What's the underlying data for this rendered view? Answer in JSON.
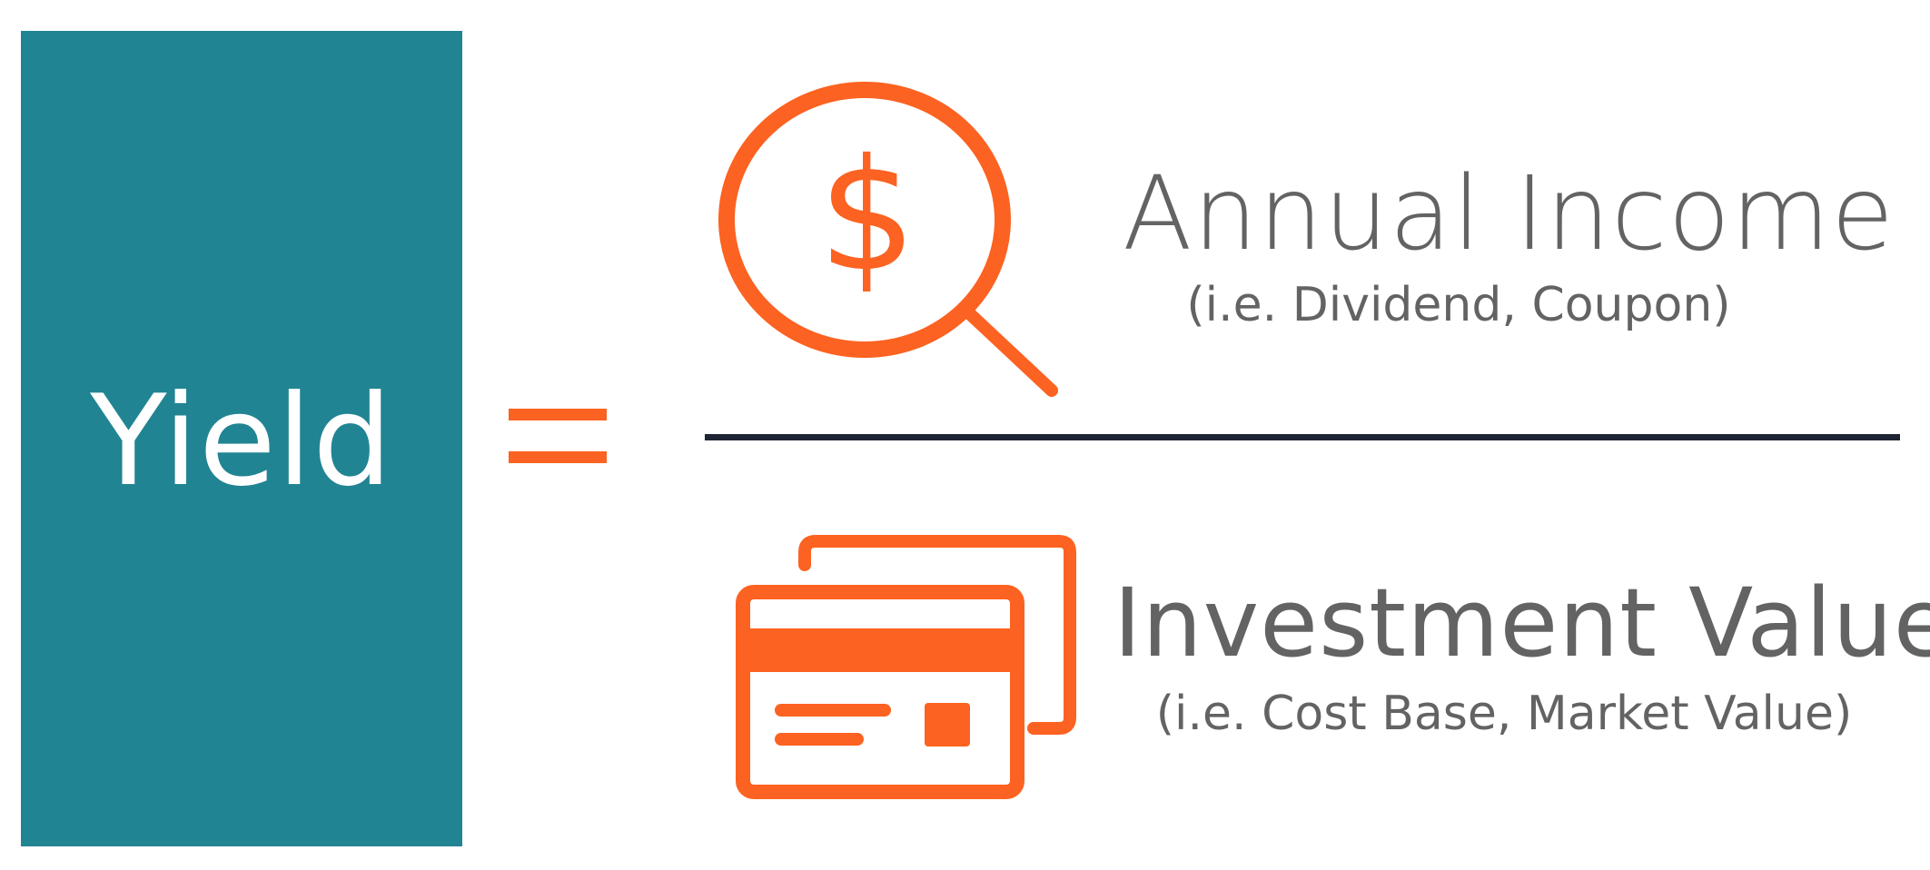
{
  "formula": {
    "left_label": "Yield",
    "operator": "=",
    "numerator": {
      "title": "Annual Income",
      "subtitle": "(i.e. Dividend, Coupon)",
      "icon": "dollar-magnifier-icon"
    },
    "denominator": {
      "title": "Investment Value",
      "subtitle": "(i.e. Cost Base, Market Value)",
      "icon": "credit-cards-icon"
    }
  },
  "colors": {
    "yield_box": "#218493",
    "accent": "#fc6221",
    "text": "#636363",
    "fraction_line": "#1e2433",
    "background": "#ffffff"
  }
}
